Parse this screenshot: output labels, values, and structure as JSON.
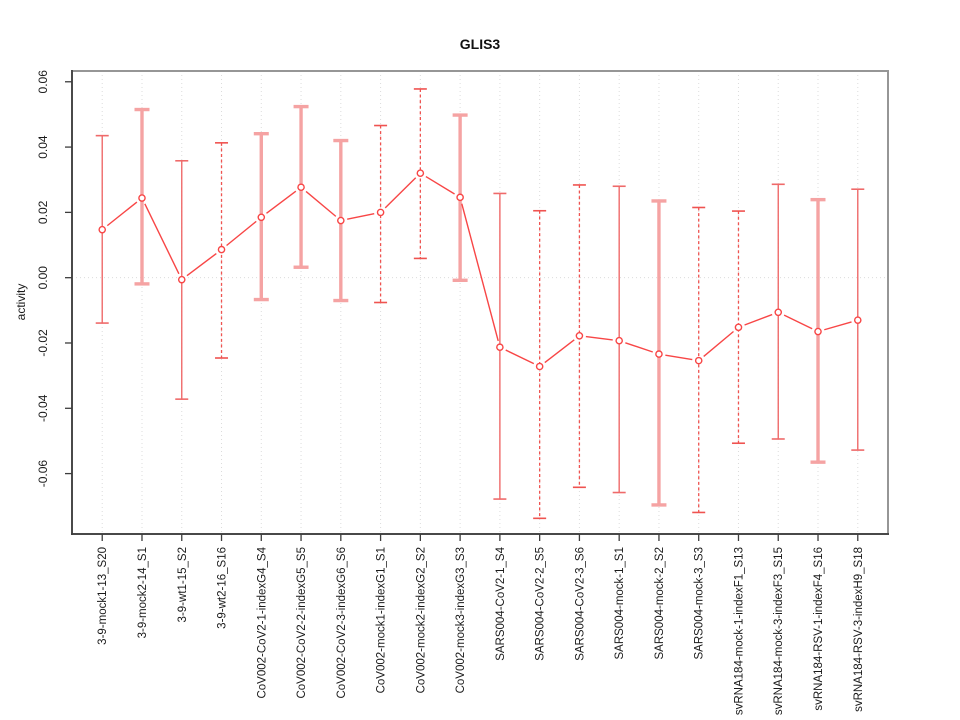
{
  "chart_data": {
    "type": "line",
    "title": "GLIS3",
    "xlabel": "",
    "ylabel": "activity",
    "ylim": [
      -0.0785,
      0.0633
    ],
    "yticks": [
      -0.06,
      -0.04,
      -0.02,
      0.0,
      0.02,
      0.04,
      0.06
    ],
    "ytick_labels": [
      "-0.06",
      "-0.04",
      "-0.02",
      "0.00",
      "0.02",
      "0.04",
      "0.06"
    ],
    "grid": {
      "vertical": "dotted line at every category",
      "zero_line": "dotted horizontal at 0.00"
    },
    "legend": "none",
    "categories": [
      "3-9-mock1-13_S20",
      "3-9-mock2-14_S1",
      "3-9-wt1-15_S2",
      "3-9-wt2-16_S16",
      "CoV002-CoV2-1-indexG4_S4",
      "CoV002-CoV2-2-indexG5_S5",
      "CoV002-CoV2-3-indexG6_S6",
      "CoV002-mock1-indexG1_S1",
      "CoV002-mock2-indexG2_S2",
      "CoV002-mock3-indexG3_S3",
      "SARS004-CoV2-1_S4",
      "SARS004-CoV2-2_S5",
      "SARS004-CoV2-3_S6",
      "SARS004-mock-1_S1",
      "SARS004-mock-2_S2",
      "SARS004-mock-3_S3",
      "svRNA184-mock-1-indexF1_S13",
      "svRNA184-mock-3-indexF3_S15",
      "svRNA184-RSV-1-indexF4_S16",
      "svRNA184-RSV-3-indexH9_S18"
    ],
    "series": [
      {
        "name": "activity",
        "values": [
          0.0147,
          0.0244,
          -0.0006,
          0.0086,
          0.0185,
          0.0277,
          0.0175,
          0.02,
          0.032,
          0.0246,
          -0.0213,
          -0.0272,
          -0.0178,
          -0.0193,
          -0.0234,
          -0.0254,
          -0.0152,
          -0.0106,
          -0.0165,
          -0.013
        ],
        "error_low": [
          -0.0139,
          -0.0019,
          -0.0372,
          -0.0246,
          -0.0067,
          0.0032,
          -0.007,
          -0.0076,
          0.0059,
          -0.0008,
          -0.0678,
          -0.0737,
          -0.0642,
          -0.0658,
          -0.0696,
          -0.0719,
          -0.0507,
          -0.0494,
          -0.0565,
          -0.0528
        ],
        "error_high": [
          0.0435,
          0.0515,
          0.0358,
          0.0413,
          0.0441,
          0.0524,
          0.042,
          0.0466,
          0.0578,
          0.0498,
          0.0258,
          0.0205,
          0.0284,
          0.028,
          0.0235,
          0.0215,
          0.0204,
          0.0286,
          0.0239,
          0.0271
        ],
        "bar_styles": [
          "thin",
          "thick",
          "thin",
          "dashed",
          "thick",
          "thick",
          "thick",
          "dashed",
          "dashed",
          "thick",
          "thin",
          "dashed",
          "dashed",
          "thin",
          "thick",
          "dashed",
          "dashed",
          "thin",
          "thick",
          "thin"
        ]
      }
    ],
    "colors": {
      "point": "#f84646",
      "line": "#f84646",
      "errorbar_thin": "#ef6a6a",
      "errorbar_thick": "#f5a3a3",
      "errorbar_dashed": "#ef5350",
      "grid": "#dcdcdc",
      "box": "#969696",
      "axis": "#3d3d3d",
      "text": "#1a1a1a"
    }
  }
}
